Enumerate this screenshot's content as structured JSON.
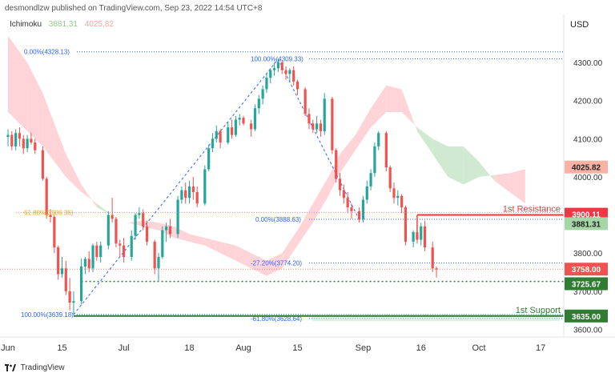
{
  "header": {
    "text": "desmondlzw published on TradingView.com, Sep 23, 2022 14:54 UTC+8"
  },
  "indicator": {
    "name": "Ichimoku",
    "value1": "3881.31",
    "value2": "4025.82"
  },
  "currency": "USD",
  "footer": {
    "brand": "TradingView"
  },
  "colors": {
    "up": "#26a69a",
    "down": "#ef5350",
    "green_cloud": "#c8e6c9",
    "red_cloud": "#ffcdd2",
    "resistance": "#f23645",
    "support": "#2e7d32",
    "fib": "#2962ff",
    "fib618": "#f7a600"
  },
  "chart_data": {
    "type": "candlestick",
    "y_ticks": [
      3600,
      3700,
      3800,
      3900,
      4000,
      4100,
      4200,
      4300
    ],
    "y_tick_labels": [
      "3600.00",
      "3700.00",
      "3800.00",
      "3900.00",
      "4000.00",
      "4100.00",
      "4200.00",
      "4300.00"
    ],
    "ylim": [
      3580,
      4380
    ],
    "x_ticks": [
      {
        "label": "Jun",
        "day": 0
      },
      {
        "label": "15",
        "day": 14
      },
      {
        "label": "Jul",
        "day": 30
      },
      {
        "label": "18",
        "day": 47
      },
      {
        "label": "Aug",
        "day": 61
      },
      {
        "label": "15",
        "day": 75
      },
      {
        "label": "Sep",
        "day": 92
      },
      {
        "label": "16",
        "day": 107
      },
      {
        "label": "Oct",
        "day": 122
      },
      {
        "label": "17",
        "day": 138
      }
    ],
    "candles": [
      {
        "d": 0,
        "o": 4105,
        "h": 4125,
        "l": 4080,
        "c": 4110
      },
      {
        "d": 1,
        "o": 4110,
        "h": 4120,
        "l": 4070,
        "c": 4080
      },
      {
        "d": 2,
        "o": 4080,
        "h": 4125,
        "l": 4070,
        "c": 4115
      },
      {
        "d": 3,
        "o": 4115,
        "h": 4130,
        "l": 4080,
        "c": 4100
      },
      {
        "d": 4,
        "o": 4100,
        "h": 4110,
        "l": 4060,
        "c": 4075
      },
      {
        "d": 5,
        "o": 4075,
        "h": 4110,
        "l": 4065,
        "c": 4100
      },
      {
        "d": 6,
        "o": 4100,
        "h": 4115,
        "l": 4085,
        "c": 4090
      },
      {
        "d": 7,
        "o": 4090,
        "h": 4100,
        "l": 4060,
        "c": 4070
      },
      {
        "d": 9,
        "o": 4070,
        "h": 4080,
        "l": 3990,
        "c": 3995
      },
      {
        "d": 10,
        "o": 3995,
        "h": 4000,
        "l": 3890,
        "c": 3900
      },
      {
        "d": 11,
        "o": 3900,
        "h": 3915,
        "l": 3880,
        "c": 3895
      },
      {
        "d": 12,
        "o": 3895,
        "h": 3900,
        "l": 3800,
        "c": 3815
      },
      {
        "d": 13,
        "o": 3815,
        "h": 3820,
        "l": 3730,
        "c": 3745
      },
      {
        "d": 14,
        "o": 3745,
        "h": 3790,
        "l": 3735,
        "c": 3760
      },
      {
        "d": 15,
        "o": 3760,
        "h": 3780,
        "l": 3690,
        "c": 3700
      },
      {
        "d": 16,
        "o": 3700,
        "h": 3735,
        "l": 3650,
        "c": 3670
      },
      {
        "d": 17,
        "o": 3670,
        "h": 3700,
        "l": 3639,
        "c": 3674
      },
      {
        "d": 19,
        "o": 3674,
        "h": 3785,
        "l": 3665,
        "c": 3765
      },
      {
        "d": 20,
        "o": 3765,
        "h": 3790,
        "l": 3745,
        "c": 3785
      },
      {
        "d": 21,
        "o": 3785,
        "h": 3805,
        "l": 3750,
        "c": 3760
      },
      {
        "d": 22,
        "o": 3760,
        "h": 3825,
        "l": 3750,
        "c": 3820
      },
      {
        "d": 23,
        "o": 3820,
        "h": 3830,
        "l": 3780,
        "c": 3790
      },
      {
        "d": 24,
        "o": 3790,
        "h": 3830,
        "l": 3775,
        "c": 3820
      },
      {
        "d": 26,
        "o": 3820,
        "h": 3910,
        "l": 3810,
        "c": 3900
      },
      {
        "d": 27,
        "o": 3900,
        "h": 3945,
        "l": 3880,
        "c": 3890
      },
      {
        "d": 28,
        "o": 3890,
        "h": 3895,
        "l": 3815,
        "c": 3825
      },
      {
        "d": 29,
        "o": 3825,
        "h": 3835,
        "l": 3790,
        "c": 3820
      },
      {
        "d": 30,
        "o": 3820,
        "h": 3840,
        "l": 3775,
        "c": 3790
      },
      {
        "d": 32,
        "o": 3790,
        "h": 3860,
        "l": 3780,
        "c": 3845
      },
      {
        "d": 33,
        "o": 3845,
        "h": 3905,
        "l": 3835,
        "c": 3900
      },
      {
        "d": 34,
        "o": 3900,
        "h": 3920,
        "l": 3890,
        "c": 3905
      },
      {
        "d": 35,
        "o": 3905,
        "h": 3915,
        "l": 3860,
        "c": 3870
      },
      {
        "d": 36,
        "o": 3870,
        "h": 3885,
        "l": 3820,
        "c": 3830
      },
      {
        "d": 38,
        "o": 3830,
        "h": 3835,
        "l": 3745,
        "c": 3760
      },
      {
        "d": 39,
        "o": 3760,
        "h": 3800,
        "l": 3725,
        "c": 3790
      },
      {
        "d": 40,
        "o": 3790,
        "h": 3870,
        "l": 3785,
        "c": 3860
      },
      {
        "d": 41,
        "o": 3860,
        "h": 3880,
        "l": 3830,
        "c": 3870
      },
      {
        "d": 42,
        "o": 3870,
        "h": 3890,
        "l": 3840,
        "c": 3850
      },
      {
        "d": 44,
        "o": 3850,
        "h": 3950,
        "l": 3840,
        "c": 3940
      },
      {
        "d": 45,
        "o": 3940,
        "h": 3975,
        "l": 3930,
        "c": 3965
      },
      {
        "d": 46,
        "o": 3965,
        "h": 3985,
        "l": 3930,
        "c": 3945
      },
      {
        "d": 47,
        "o": 3945,
        "h": 3990,
        "l": 3930,
        "c": 3975
      },
      {
        "d": 48,
        "o": 3975,
        "h": 4000,
        "l": 3940,
        "c": 3960
      },
      {
        "d": 49,
        "o": 3960,
        "h": 3975,
        "l": 3920,
        "c": 3930
      },
      {
        "d": 51,
        "o": 3930,
        "h": 4030,
        "l": 3925,
        "c": 4020
      },
      {
        "d": 52,
        "o": 4020,
        "h": 4085,
        "l": 4015,
        "c": 4075
      },
      {
        "d": 53,
        "o": 4075,
        "h": 4115,
        "l": 4065,
        "c": 4100
      },
      {
        "d": 54,
        "o": 4100,
        "h": 4135,
        "l": 4090,
        "c": 4120
      },
      {
        "d": 55,
        "o": 4120,
        "h": 4125,
        "l": 4075,
        "c": 4090
      },
      {
        "d": 57,
        "o": 4090,
        "h": 4145,
        "l": 4085,
        "c": 4130
      },
      {
        "d": 58,
        "o": 4130,
        "h": 4150,
        "l": 4100,
        "c": 4110
      },
      {
        "d": 59,
        "o": 4110,
        "h": 4160,
        "l": 4105,
        "c": 4150
      },
      {
        "d": 60,
        "o": 4150,
        "h": 4165,
        "l": 4135,
        "c": 4155
      },
      {
        "d": 61,
        "o": 4155,
        "h": 4160,
        "l": 4135,
        "c": 4140
      },
      {
        "d": 63,
        "o": 4140,
        "h": 4150,
        "l": 4105,
        "c": 4125
      },
      {
        "d": 64,
        "o": 4125,
        "h": 4190,
        "l": 4120,
        "c": 4180
      },
      {
        "d": 65,
        "o": 4180,
        "h": 4215,
        "l": 4165,
        "c": 4205
      },
      {
        "d": 66,
        "o": 4205,
        "h": 4240,
        "l": 4190,
        "c": 4230
      },
      {
        "d": 67,
        "o": 4230,
        "h": 4270,
        "l": 4220,
        "c": 4260
      },
      {
        "d": 68,
        "o": 4260,
        "h": 4285,
        "l": 4245,
        "c": 4280
      },
      {
        "d": 69,
        "o": 4280,
        "h": 4300,
        "l": 4265,
        "c": 4285
      },
      {
        "d": 70,
        "o": 4285,
        "h": 4309,
        "l": 4275,
        "c": 4300
      },
      {
        "d": 71,
        "o": 4300,
        "h": 4305,
        "l": 4270,
        "c": 4280
      },
      {
        "d": 72,
        "o": 4280,
        "h": 4290,
        "l": 4255,
        "c": 4270
      },
      {
        "d": 73,
        "o": 4270,
        "h": 4285,
        "l": 4250,
        "c": 4280
      },
      {
        "d": 74,
        "o": 4280,
        "h": 4290,
        "l": 4240,
        "c": 4250
      },
      {
        "d": 75,
        "o": 4250,
        "h": 4255,
        "l": 4215,
        "c": 4230
      },
      {
        "d": 77,
        "o": 4230,
        "h": 4235,
        "l": 4160,
        "c": 4165
      },
      {
        "d": 78,
        "o": 4165,
        "h": 4180,
        "l": 4125,
        "c": 4140
      },
      {
        "d": 79,
        "o": 4140,
        "h": 4150,
        "l": 4115,
        "c": 4125
      },
      {
        "d": 80,
        "o": 4125,
        "h": 4160,
        "l": 4115,
        "c": 4140
      },
      {
        "d": 81,
        "o": 4140,
        "h": 4150,
        "l": 4105,
        "c": 4120
      },
      {
        "d": 82,
        "o": 4120,
        "h": 4220,
        "l": 4110,
        "c": 4205
      },
      {
        "d": 84,
        "o": 4205,
        "h": 4210,
        "l": 4060,
        "c": 4070
      },
      {
        "d": 85,
        "o": 4070,
        "h": 4075,
        "l": 3985,
        "c": 3995
      },
      {
        "d": 86,
        "o": 3995,
        "h": 4010,
        "l": 3950,
        "c": 3965
      },
      {
        "d": 87,
        "o": 3965,
        "h": 3980,
        "l": 3930,
        "c": 3945
      },
      {
        "d": 88,
        "o": 3945,
        "h": 3960,
        "l": 3905,
        "c": 3920
      },
      {
        "d": 89,
        "o": 3920,
        "h": 3930,
        "l": 3890,
        "c": 3910
      },
      {
        "d": 91,
        "o": 3910,
        "h": 3920,
        "l": 3880,
        "c": 3888
      },
      {
        "d": 92,
        "o": 3888,
        "h": 3950,
        "l": 3880,
        "c": 3940
      },
      {
        "d": 93,
        "o": 3940,
        "h": 3990,
        "l": 3930,
        "c": 3975
      },
      {
        "d": 94,
        "o": 3975,
        "h": 4020,
        "l": 3965,
        "c": 4010
      },
      {
        "d": 95,
        "o": 4010,
        "h": 4090,
        "l": 4000,
        "c": 4080
      },
      {
        "d": 96,
        "o": 4080,
        "h": 4120,
        "l": 4070,
        "c": 4115
      },
      {
        "d": 98,
        "o": 4115,
        "h": 4120,
        "l": 4015,
        "c": 4025
      },
      {
        "d": 99,
        "o": 4025,
        "h": 4030,
        "l": 3960,
        "c": 3970
      },
      {
        "d": 100,
        "o": 3970,
        "h": 3985,
        "l": 3930,
        "c": 3945
      },
      {
        "d": 101,
        "o": 3945,
        "h": 3965,
        "l": 3925,
        "c": 3950
      },
      {
        "d": 102,
        "o": 3950,
        "h": 3955,
        "l": 3905,
        "c": 3920
      },
      {
        "d": 103,
        "o": 3920,
        "h": 3925,
        "l": 3820,
        "c": 3830
      },
      {
        "d": 105,
        "o": 3830,
        "h": 3860,
        "l": 3815,
        "c": 3855
      },
      {
        "d": 106,
        "o": 3855,
        "h": 3900,
        "l": 3825,
        "c": 3835
      },
      {
        "d": 107,
        "o": 3835,
        "h": 3880,
        "l": 3820,
        "c": 3870
      },
      {
        "d": 108,
        "o": 3870,
        "h": 3885,
        "l": 3805,
        "c": 3815
      },
      {
        "d": 110,
        "o": 3815,
        "h": 3830,
        "l": 3750,
        "c": 3760
      },
      {
        "d": 111,
        "o": 3760,
        "h": 3765,
        "l": 3736,
        "c": 3757
      }
    ],
    "kumo": {
      "days": [
        0,
        5,
        9,
        12,
        15,
        19,
        23,
        27,
        31,
        35,
        39,
        43,
        47,
        51,
        55,
        59,
        63,
        67,
        71,
        75,
        79,
        83,
        86,
        90,
        94,
        98,
        102,
        106,
        110,
        114,
        118,
        122,
        126,
        130,
        134
      ],
      "span_a": [
        4170,
        4120,
        4080,
        4040,
        4000,
        3960,
        3930,
        3900,
        3880,
        3870,
        3860,
        3840,
        3830,
        3820,
        3800,
        3780,
        3760,
        3740,
        3760,
        3820,
        3880,
        3950,
        4010,
        4070,
        4130,
        4170,
        4170,
        4130,
        4100,
        4080,
        4080,
        4040,
        3990,
        3960,
        3930
      ],
      "span_b": [
        4370,
        4300,
        4220,
        4140,
        4060,
        3980,
        3920,
        3900,
        3880,
        3885,
        3880,
        3870,
        3850,
        3840,
        3830,
        3820,
        3800,
        3780,
        3800,
        3860,
        3930,
        4000,
        4060,
        4110,
        4180,
        4240,
        4230,
        4120,
        4060,
        4000,
        3980,
        4000,
        4005,
        4010,
        4020
      ]
    },
    "levels": {
      "resistance": {
        "value": 3900.11,
        "label": "1st Resistance",
        "price": "3900.11",
        "from_day": 106
      },
      "support": {
        "value": 3635.0,
        "label": "1st Support",
        "price": "3635.00",
        "from_day": 17
      },
      "price_3881": {
        "price": "3881.31",
        "value": 3881.31
      },
      "price_4025": {
        "price": "4025.82",
        "value": 4025.82
      },
      "current": {
        "price": "3758.00",
        "value": 3758.0
      },
      "low_3725": {
        "price": "3725.67",
        "value": 3725.67,
        "from_day": 19
      }
    },
    "fib_left": [
      {
        "label": "0.00%(4328.13)",
        "value": 4328.13
      },
      {
        "label": "61.80%(3906.36)",
        "value": 3906.36
      },
      {
        "label": "100.00%(3639.18)",
        "value": 3639.18
      }
    ],
    "fib_right": [
      {
        "label": "100.00%(4309.33)",
        "value": 4309.33
      },
      {
        "label": "0.00%(3888.63)",
        "value": 3888.63
      },
      {
        "label": "-27.20%(3774.20)",
        "value": 3774.2
      },
      {
        "label": "-61.80%(3628.64)",
        "value": 3628.64
      }
    ],
    "trend_lines": [
      {
        "from": {
          "day": 17,
          "price": 3639
        },
        "to": {
          "day": 70,
          "price": 4309
        }
      },
      {
        "from": {
          "day": 70,
          "price": 4309
        },
        "to": {
          "day": 91,
          "price": 3888
        }
      }
    ]
  }
}
